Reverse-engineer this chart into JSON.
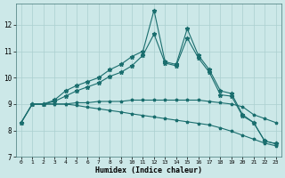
{
  "xlabel": "Humidex (Indice chaleur)",
  "bg_color": "#cce8e8",
  "grid_color": "#aacfcf",
  "line_color": "#1a6e6e",
  "xlim": [
    -0.5,
    23.5
  ],
  "ylim": [
    7,
    12.8
  ],
  "xticks": [
    0,
    1,
    2,
    3,
    4,
    5,
    6,
    7,
    8,
    9,
    10,
    11,
    12,
    13,
    14,
    15,
    16,
    17,
    18,
    19,
    20,
    21,
    22,
    23
  ],
  "yticks": [
    7,
    8,
    9,
    10,
    11,
    12
  ],
  "line1_x": [
    0,
    1,
    2,
    3,
    4,
    5,
    6,
    7,
    8,
    9,
    10,
    11,
    12,
    13,
    14,
    15,
    16,
    17,
    18,
    19,
    20,
    21,
    22,
    23
  ],
  "line1_y": [
    8.3,
    9.0,
    9.0,
    9.15,
    9.5,
    9.7,
    9.85,
    10.0,
    10.3,
    10.5,
    10.8,
    11.0,
    12.55,
    10.6,
    10.5,
    11.85,
    10.85,
    10.3,
    9.5,
    9.4,
    8.6,
    8.3,
    7.6,
    7.5
  ],
  "line2_x": [
    0,
    1,
    2,
    3,
    4,
    5,
    6,
    7,
    8,
    9,
    10,
    11,
    12,
    13,
    14,
    15,
    16,
    17,
    18,
    19,
    20,
    21,
    22,
    23
  ],
  "line2_y": [
    8.3,
    9.0,
    9.0,
    9.1,
    9.3,
    9.5,
    9.65,
    9.8,
    10.05,
    10.2,
    10.45,
    10.85,
    11.65,
    10.55,
    10.45,
    11.5,
    10.75,
    10.2,
    9.35,
    9.3,
    8.55,
    8.3,
    7.6,
    7.5
  ],
  "line3_x": [
    1,
    2,
    3,
    4,
    5,
    6,
    7,
    8,
    9,
    10,
    11,
    12,
    13,
    14,
    15,
    16,
    17,
    18,
    19,
    20,
    21,
    22,
    23
  ],
  "line3_y": [
    9.0,
    9.0,
    9.0,
    9.0,
    9.05,
    9.05,
    9.1,
    9.1,
    9.1,
    9.15,
    9.15,
    9.15,
    9.15,
    9.15,
    9.15,
    9.15,
    9.1,
    9.05,
    9.0,
    8.9,
    8.6,
    8.45,
    8.3
  ],
  "line4_x": [
    0,
    1,
    2,
    3,
    4,
    5,
    6,
    7,
    8,
    9,
    10,
    11,
    12,
    13,
    14,
    15,
    16,
    17,
    18,
    19,
    20,
    21,
    22,
    23
  ],
  "line4_y": [
    8.3,
    9.0,
    9.0,
    9.0,
    9.0,
    8.95,
    8.88,
    8.82,
    8.76,
    8.7,
    8.63,
    8.57,
    8.51,
    8.45,
    8.39,
    8.33,
    8.27,
    8.21,
    8.1,
    7.97,
    7.82,
    7.67,
    7.52,
    7.42
  ]
}
